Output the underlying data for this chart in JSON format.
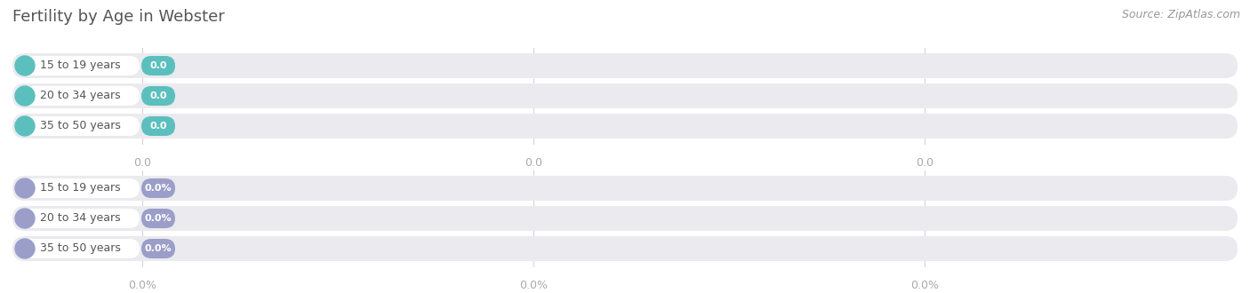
{
  "title": "Fertility by Age in Webster",
  "source": "Source: ZipAtlas.com",
  "top_section": {
    "rows": [
      {
        "label": "15 to 19 years",
        "value": 0.0,
        "value_str": "0.0"
      },
      {
        "label": "20 to 34 years",
        "value": 0.0,
        "value_str": "0.0"
      },
      {
        "label": "35 to 50 years",
        "value": 0.0,
        "value_str": "0.0"
      }
    ],
    "bar_color": "#5bbfbe",
    "bar_track_color": "#eaeaef",
    "tick_labels": [
      "0.0",
      "0.0",
      "0.0"
    ]
  },
  "bottom_section": {
    "rows": [
      {
        "label": "15 to 19 years",
        "value": 0.0,
        "value_str": "0.0%"
      },
      {
        "label": "20 to 34 years",
        "value": 0.0,
        "value_str": "0.0%"
      },
      {
        "label": "35 to 50 years",
        "value": 0.0,
        "value_str": "0.0%"
      }
    ],
    "bar_color": "#9b9ec9",
    "bar_track_color": "#eaeaef",
    "tick_labels": [
      "0.0%",
      "0.0%",
      "0.0%"
    ]
  },
  "background_color": "#ffffff",
  "grid_line_color": "#d0d0d8",
  "title_color": "#555555",
  "source_color": "#999999",
  "label_text_color": "#555555",
  "tick_label_color": "#aaaaaa",
  "title_fontsize": 13,
  "source_fontsize": 9,
  "label_fontsize": 9,
  "value_fontsize": 8,
  "tick_fontsize": 9
}
